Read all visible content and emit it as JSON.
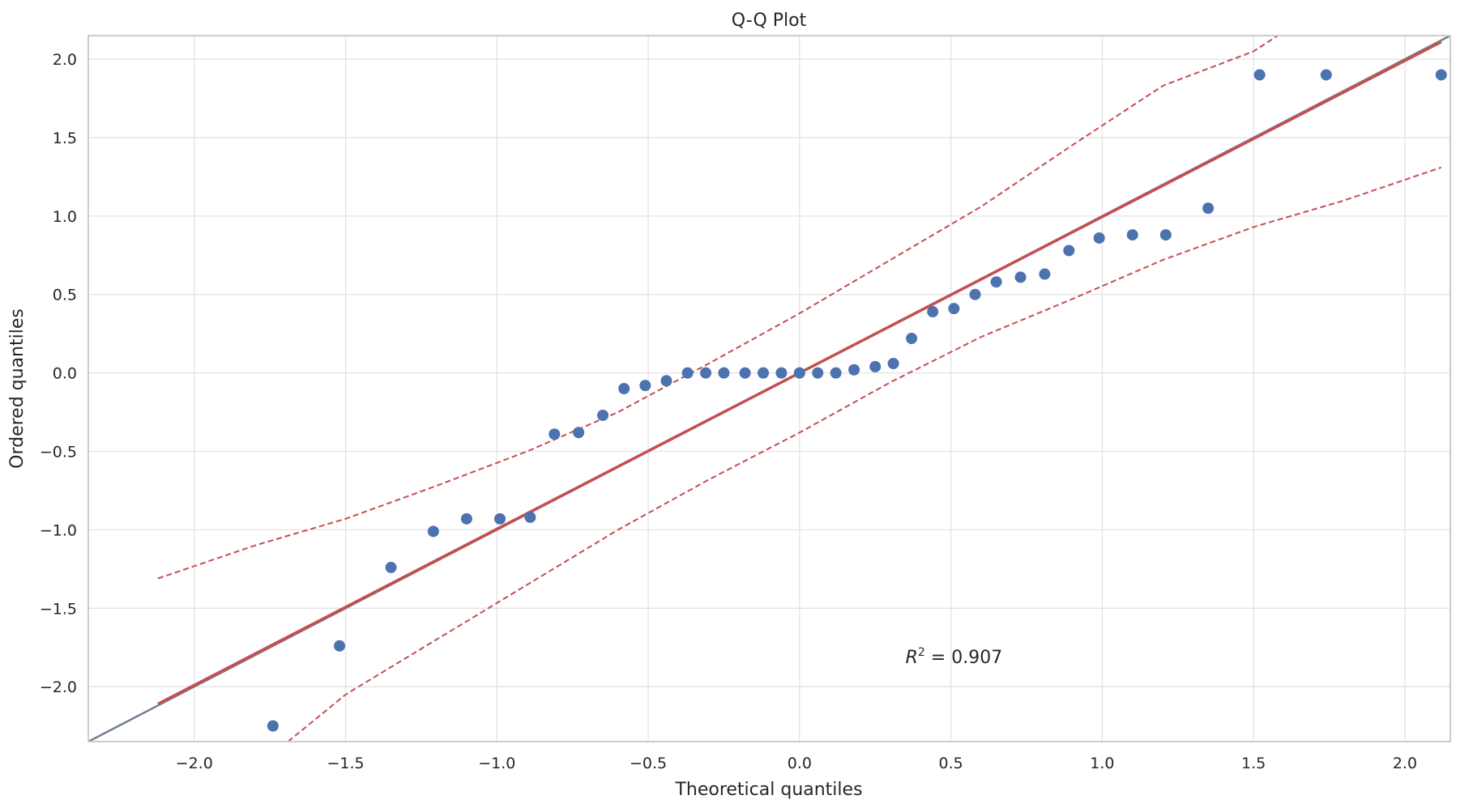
{
  "chart_data": {
    "type": "scatter",
    "title": "Q-Q Plot",
    "xlabel": "Theoretical quantiles",
    "ylabel": "Ordered quantiles",
    "xlim": [
      -2.35,
      2.15
    ],
    "ylim": [
      -2.35,
      2.15
    ],
    "xticks": [
      -2.0,
      -1.5,
      -1.0,
      -0.5,
      0.0,
      0.5,
      1.0,
      1.5,
      2.0
    ],
    "yticks": [
      -2.0,
      -1.5,
      -1.0,
      -0.5,
      0.0,
      0.5,
      1.0,
      1.5,
      2.0
    ],
    "xtick_labels": [
      "−2.0",
      "−1.5",
      "−1.0",
      "−0.5",
      "0.0",
      "0.5",
      "1.0",
      "1.5",
      "2.0"
    ],
    "ytick_labels": [
      "−2.0",
      "−1.5",
      "−1.0",
      "−0.5",
      "0.0",
      "0.5",
      "1.0",
      "1.5",
      "2.0"
    ],
    "grid": true,
    "points": {
      "x": [
        -1.74,
        -1.52,
        -1.35,
        -1.21,
        -1.1,
        -0.99,
        -0.89,
        -0.81,
        -0.73,
        -0.65,
        -0.58,
        -0.51,
        -0.44,
        -0.37,
        -0.31,
        -0.25,
        -0.18,
        -0.12,
        -0.06,
        0.0,
        0.06,
        0.12,
        0.18,
        0.25,
        0.31,
        0.37,
        0.44,
        0.51,
        0.58,
        0.65,
        0.73,
        0.81,
        0.89,
        0.99,
        1.1,
        1.21,
        1.35,
        1.52,
        1.74,
        2.12
      ],
      "y": [
        -2.25,
        -1.74,
        -1.24,
        -1.01,
        -0.93,
        -0.93,
        -0.92,
        -0.39,
        -0.38,
        -0.27,
        -0.1,
        -0.08,
        -0.05,
        0.0,
        0.0,
        0.0,
        0.0,
        0.0,
        0.0,
        0.0,
        0.0,
        0.0,
        0.02,
        0.04,
        0.06,
        0.22,
        0.39,
        0.41,
        0.5,
        0.58,
        0.61,
        0.63,
        0.78,
        0.86,
        0.88,
        0.88,
        1.05,
        1.9,
        1.9,
        1.9
      ],
      "color": "#4c72b0"
    },
    "identity_line": {
      "x": [
        -2.35,
        2.15
      ],
      "y": [
        -2.35,
        2.15
      ],
      "color": "#708090"
    },
    "fit_line": {
      "x": [
        -2.12,
        2.12
      ],
      "y": [
        -2.11,
        2.11
      ],
      "color": "#c44e52"
    },
    "confidence_band": {
      "upper": {
        "x": [
          -2.12,
          -1.8,
          -1.5,
          -1.2,
          -0.9,
          -0.6,
          -0.3,
          0.0,
          0.3,
          0.6,
          0.9,
          1.2,
          1.5,
          1.58
        ],
        "y": [
          -1.31,
          -1.1,
          -0.93,
          -0.72,
          -0.5,
          -0.25,
          0.06,
          0.38,
          0.72,
          1.06,
          1.45,
          1.83,
          2.05,
          2.15
        ]
      },
      "lower": {
        "x": [
          -1.69,
          -1.5,
          -1.2,
          -0.9,
          -0.6,
          -0.3,
          0.0,
          0.3,
          0.6,
          0.9,
          1.2,
          1.5,
          1.8,
          2.12
        ],
        "y": [
          -2.35,
          -2.05,
          -1.7,
          -1.35,
          -1.0,
          -0.68,
          -0.38,
          -0.06,
          0.23,
          0.47,
          0.72,
          0.93,
          1.1,
          1.31
        ]
      },
      "color": "#c44e52"
    },
    "annotation": {
      "prefix": "R",
      "sup": "2",
      "text": " = 0.907",
      "x": 0.35,
      "y": -1.85
    }
  }
}
